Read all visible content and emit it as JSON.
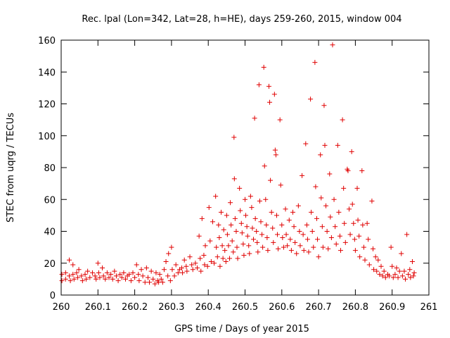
{
  "chart_data": {
    "type": "scatter",
    "title": "Rec. lpal (Lon=342, Lat=28, h=HE), days 259-260, 2015, window 004",
    "xlabel": "GPS time / Days of year 2015",
    "ylabel": "STEC from uqrg / TECUs",
    "xlim": [
      260,
      261
    ],
    "ylim": [
      0,
      160
    ],
    "x_ticks": [
      260,
      260.1,
      260.2,
      260.3,
      260.4,
      260.5,
      260.6,
      260.7,
      260.8,
      260.9,
      261
    ],
    "x_tick_labels": [
      "260",
      "260.1",
      "260.2",
      "260.3",
      "260.4",
      "260.5",
      "260.6",
      "260.7",
      "260.8",
      "260.9",
      "261"
    ],
    "y_ticks": [
      0,
      20,
      40,
      60,
      80,
      100,
      120,
      140,
      160
    ],
    "y_tick_labels": [
      "0",
      "20",
      "40",
      "60",
      "80",
      "100",
      "120",
      "140",
      "160"
    ],
    "grid": false,
    "marker": "+",
    "color": "#e00000",
    "series": [
      {
        "name": "STEC",
        "points": [
          [
            260.002,
            13
          ],
          [
            260.002,
            9
          ],
          [
            260.012,
            14
          ],
          [
            260.012,
            10
          ],
          [
            260.022,
            22
          ],
          [
            260.022,
            12
          ],
          [
            260.025,
            9
          ],
          [
            260.032,
            19
          ],
          [
            260.032,
            13
          ],
          [
            260.035,
            10
          ],
          [
            260.042,
            14
          ],
          [
            260.045,
            11
          ],
          [
            260.048,
            16
          ],
          [
            260.055,
            12
          ],
          [
            260.058,
            9
          ],
          [
            260.065,
            13
          ],
          [
            260.068,
            10
          ],
          [
            260.072,
            15
          ],
          [
            260.078,
            11
          ],
          [
            260.085,
            14
          ],
          [
            260.092,
            12
          ],
          [
            260.095,
            10
          ],
          [
            260.1,
            20
          ],
          [
            260.102,
            14
          ],
          [
            260.105,
            11
          ],
          [
            260.112,
            17
          ],
          [
            260.115,
            12
          ],
          [
            260.12,
            10
          ],
          [
            260.125,
            14
          ],
          [
            260.13,
            11
          ],
          [
            260.135,
            13
          ],
          [
            260.14,
            10
          ],
          [
            260.145,
            15
          ],
          [
            260.15,
            12
          ],
          [
            260.155,
            9
          ],
          [
            260.16,
            13
          ],
          [
            260.165,
            11
          ],
          [
            260.17,
            14
          ],
          [
            260.175,
            10
          ],
          [
            260.18,
            12
          ],
          [
            260.185,
            13
          ],
          [
            260.19,
            9
          ],
          [
            260.195,
            14
          ],
          [
            260.2,
            11
          ],
          [
            260.205,
            19
          ],
          [
            260.21,
            13
          ],
          [
            260.212,
            9
          ],
          [
            260.218,
            16
          ],
          [
            260.222,
            12
          ],
          [
            260.228,
            8
          ],
          [
            260.232,
            17
          ],
          [
            260.236,
            11
          ],
          [
            260.24,
            8
          ],
          [
            260.245,
            15
          ],
          [
            260.25,
            10
          ],
          [
            260.255,
            7
          ],
          [
            260.258,
            14
          ],
          [
            260.262,
            9
          ],
          [
            260.265,
            8
          ],
          [
            260.268,
            13
          ],
          [
            260.272,
            10
          ],
          [
            260.276,
            8
          ],
          [
            260.28,
            16
          ],
          [
            260.285,
            21
          ],
          [
            260.29,
            12
          ],
          [
            260.292,
            26
          ],
          [
            260.297,
            9
          ],
          [
            260.3,
            30
          ],
          [
            260.302,
            16
          ],
          [
            260.308,
            12
          ],
          [
            260.312,
            19
          ],
          [
            260.318,
            14
          ],
          [
            260.322,
            16
          ],
          [
            260.328,
            17
          ],
          [
            260.33,
            14
          ],
          [
            260.335,
            22
          ],
          [
            260.34,
            18
          ],
          [
            260.342,
            15
          ],
          [
            260.35,
            24
          ],
          [
            260.355,
            19
          ],
          [
            260.358,
            16
          ],
          [
            260.365,
            20
          ],
          [
            260.37,
            17
          ],
          [
            260.375,
            37
          ],
          [
            260.378,
            23
          ],
          [
            260.38,
            15
          ],
          [
            260.383,
            48
          ],
          [
            260.388,
            25
          ],
          [
            260.39,
            19
          ],
          [
            260.392,
            31
          ],
          [
            260.398,
            18
          ],
          [
            260.402,
            55
          ],
          [
            260.405,
            34
          ],
          [
            260.408,
            21
          ],
          [
            260.412,
            46
          ],
          [
            260.416,
            20
          ],
          [
            260.42,
            62
          ],
          [
            260.422,
            30
          ],
          [
            260.425,
            24
          ],
          [
            260.428,
            44
          ],
          [
            260.43,
            36
          ],
          [
            260.432,
            18
          ],
          [
            260.435,
            52
          ],
          [
            260.438,
            31
          ],
          [
            260.44,
            23
          ],
          [
            260.442,
            41
          ],
          [
            260.445,
            28
          ],
          [
            260.448,
            21
          ],
          [
            260.45,
            50
          ],
          [
            260.452,
            38
          ],
          [
            260.455,
            31
          ],
          [
            260.458,
            23
          ],
          [
            260.46,
            58
          ],
          [
            260.462,
            44
          ],
          [
            260.465,
            34
          ],
          [
            260.468,
            27
          ],
          [
            260.47,
            99
          ],
          [
            260.471,
            73
          ],
          [
            260.473,
            48
          ],
          [
            260.476,
            40
          ],
          [
            260.478,
            30
          ],
          [
            260.48,
            23
          ],
          [
            260.485,
            67
          ],
          [
            260.487,
            53
          ],
          [
            260.49,
            45
          ],
          [
            260.492,
            39
          ],
          [
            260.495,
            32
          ],
          [
            260.497,
            25
          ],
          [
            260.5,
            60
          ],
          [
            260.502,
            50
          ],
          [
            260.505,
            43
          ],
          [
            260.507,
            37
          ],
          [
            260.51,
            31
          ],
          [
            260.512,
            26
          ],
          [
            260.515,
            62
          ],
          [
            260.518,
            55
          ],
          [
            260.52,
            42
          ],
          [
            260.523,
            35
          ],
          [
            260.526,
            111
          ],
          [
            260.528,
            48
          ],
          [
            260.531,
            40
          ],
          [
            260.533,
            33
          ],
          [
            260.535,
            27
          ],
          [
            260.538,
            132
          ],
          [
            260.54,
            59
          ],
          [
            260.543,
            46
          ],
          [
            260.546,
            38
          ],
          [
            260.548,
            30
          ],
          [
            260.551,
            143
          ],
          [
            260.553,
            81
          ],
          [
            260.556,
            60
          ],
          [
            260.558,
            44
          ],
          [
            260.56,
            36
          ],
          [
            260.562,
            28
          ],
          [
            260.565,
            131
          ],
          [
            260.567,
            121
          ],
          [
            260.569,
            72
          ],
          [
            260.572,
            52
          ],
          [
            260.575,
            42
          ],
          [
            260.577,
            33
          ],
          [
            260.58,
            126
          ],
          [
            260.582,
            91
          ],
          [
            260.584,
            88
          ],
          [
            260.586,
            50
          ],
          [
            260.588,
            38
          ],
          [
            260.59,
            29
          ],
          [
            260.595,
            110
          ],
          [
            260.597,
            69
          ],
          [
            260.6,
            44
          ],
          [
            260.602,
            36
          ],
          [
            260.605,
            30
          ],
          [
            260.61,
            54
          ],
          [
            260.612,
            38
          ],
          [
            260.615,
            31
          ],
          [
            260.62,
            47
          ],
          [
            260.623,
            35
          ],
          [
            260.626,
            28
          ],
          [
            260.63,
            52
          ],
          [
            260.633,
            43
          ],
          [
            260.636,
            33
          ],
          [
            260.64,
            26
          ],
          [
            260.645,
            56
          ],
          [
            260.648,
            40
          ],
          [
            260.65,
            31
          ],
          [
            260.655,
            75
          ],
          [
            260.658,
            38
          ],
          [
            260.66,
            28
          ],
          [
            260.665,
            95
          ],
          [
            260.668,
            44
          ],
          [
            260.67,
            35
          ],
          [
            260.673,
            27
          ],
          [
            260.678,
            123
          ],
          [
            260.68,
            52
          ],
          [
            260.683,
            40
          ],
          [
            260.686,
            30
          ],
          [
            260.69,
            146
          ],
          [
            260.692,
            68
          ],
          [
            260.695,
            48
          ],
          [
            260.697,
            35
          ],
          [
            260.7,
            24
          ],
          [
            260.705,
            88
          ],
          [
            260.707,
            61
          ],
          [
            260.71,
            43
          ],
          [
            260.712,
            30
          ],
          [
            260.715,
            119
          ],
          [
            260.717,
            94
          ],
          [
            260.72,
            56
          ],
          [
            260.723,
            40
          ],
          [
            260.726,
            29
          ],
          [
            260.73,
            76
          ],
          [
            260.732,
            49
          ],
          [
            260.735,
            36
          ],
          [
            260.738,
            157
          ],
          [
            260.742,
            60
          ],
          [
            260.745,
            43
          ],
          [
            260.748,
            32
          ],
          [
            260.752,
            94
          ],
          [
            260.755,
            52
          ],
          [
            260.758,
            37
          ],
          [
            260.76,
            28
          ],
          [
            260.765,
            110
          ],
          [
            260.768,
            67
          ],
          [
            260.77,
            45
          ],
          [
            260.773,
            33
          ],
          [
            260.778,
            79
          ],
          [
            260.78,
            78
          ],
          [
            260.783,
            54
          ],
          [
            260.786,
            38
          ],
          [
            260.79,
            90
          ],
          [
            260.792,
            57
          ],
          [
            260.795,
            45
          ],
          [
            260.798,
            35
          ],
          [
            260.8,
            28
          ],
          [
            260.805,
            67
          ],
          [
            260.807,
            47
          ],
          [
            260.81,
            37
          ],
          [
            260.812,
            24
          ],
          [
            260.818,
            78
          ],
          [
            260.82,
            44
          ],
          [
            260.823,
            30
          ],
          [
            260.826,
            22
          ],
          [
            260.832,
            45
          ],
          [
            260.835,
            35
          ],
          [
            260.838,
            19
          ],
          [
            260.845,
            59
          ],
          [
            260.848,
            29
          ],
          [
            260.85,
            16
          ],
          [
            260.855,
            24
          ],
          [
            260.858,
            15
          ],
          [
            260.862,
            22
          ],
          [
            260.866,
            13
          ],
          [
            260.87,
            18
          ],
          [
            260.874,
            12
          ],
          [
            260.878,
            15
          ],
          [
            260.882,
            11
          ],
          [
            260.888,
            13
          ],
          [
            260.892,
            12
          ],
          [
            260.897,
            30
          ],
          [
            260.9,
            18
          ],
          [
            260.903,
            11
          ],
          [
            260.908,
            13
          ],
          [
            260.912,
            17
          ],
          [
            260.916,
            11
          ],
          [
            260.92,
            15
          ],
          [
            260.925,
            26
          ],
          [
            260.928,
            12
          ],
          [
            260.933,
            15
          ],
          [
            260.936,
            10
          ],
          [
            260.94,
            38
          ],
          [
            260.944,
            13
          ],
          [
            260.948,
            16
          ],
          [
            260.95,
            11
          ],
          [
            260.955,
            21
          ],
          [
            260.958,
            12
          ],
          [
            260.96,
            14
          ]
        ]
      }
    ]
  }
}
